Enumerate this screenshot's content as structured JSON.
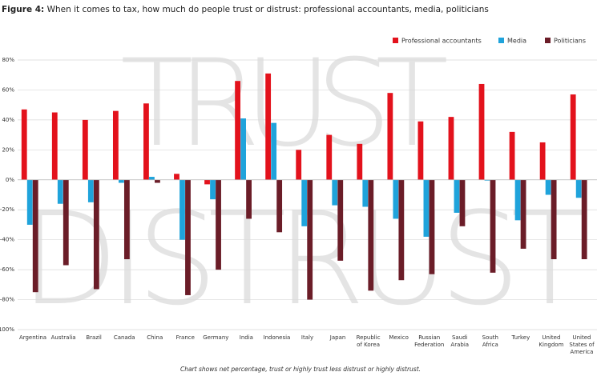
{
  "chart_data": {
    "type": "bar",
    "figure_label": "Figure 4:",
    "title": "When it comes to tax, how much do people trust or distrust: professional accountants, media, politicians",
    "watermarks": [
      "TRUST",
      "DISTRUST"
    ],
    "note": "Chart shows net percentage, trust or highly trust less distrust or highly distrust.",
    "categories": [
      "Argentina",
      "Australia",
      "Brazil",
      "Canada",
      "China",
      "France",
      "Germany",
      "India",
      "Indonesia",
      "Italy",
      "Japan",
      "Republic\nof Korea",
      "Mexico",
      "Russian\nFederation",
      "Saudi\nArabia",
      "South\nAfrica",
      "Turkey",
      "United\nKingdom",
      "United\nStates of\nAmerica"
    ],
    "series": [
      {
        "name": "Professional accountants",
        "color": "#e3121c",
        "values": [
          47,
          45,
          40,
          46,
          51,
          4,
          -3,
          66,
          71,
          20,
          30,
          24,
          58,
          39,
          42,
          64,
          32,
          25,
          57
        ]
      },
      {
        "name": "Media",
        "color": "#1fa3db",
        "values": [
          -30,
          -16,
          -15,
          -2,
          2,
          -40,
          -13,
          41,
          38,
          -31,
          -17,
          -18,
          -26,
          -38,
          -22,
          -0.5,
          -27,
          -10,
          -12
        ]
      },
      {
        "name": "Politicians",
        "color": "#6b1d28",
        "values": [
          -75,
          -57,
          -73,
          -53,
          -2,
          -77,
          -60,
          -26,
          -35,
          -80,
          -54,
          -74,
          -67,
          -63,
          -31,
          -62,
          -46,
          -53,
          -53
        ]
      }
    ],
    "ylim": [
      -100,
      80
    ],
    "yticks": [
      {
        "value": -100,
        "label": "-100%"
      },
      {
        "value": -80,
        "label": "-80%"
      },
      {
        "value": -60,
        "label": "-60%"
      },
      {
        "value": -40,
        "label": "-40%"
      },
      {
        "value": -20,
        "label": "-20%"
      },
      {
        "value": 0,
        "label": "0%"
      },
      {
        "value": 20,
        "label": "20%"
      },
      {
        "value": 40,
        "label": "40%"
      },
      {
        "value": 60,
        "label": "60%"
      },
      {
        "value": 80,
        "label": "80%"
      }
    ],
    "grid": true,
    "legend": "top-right"
  }
}
